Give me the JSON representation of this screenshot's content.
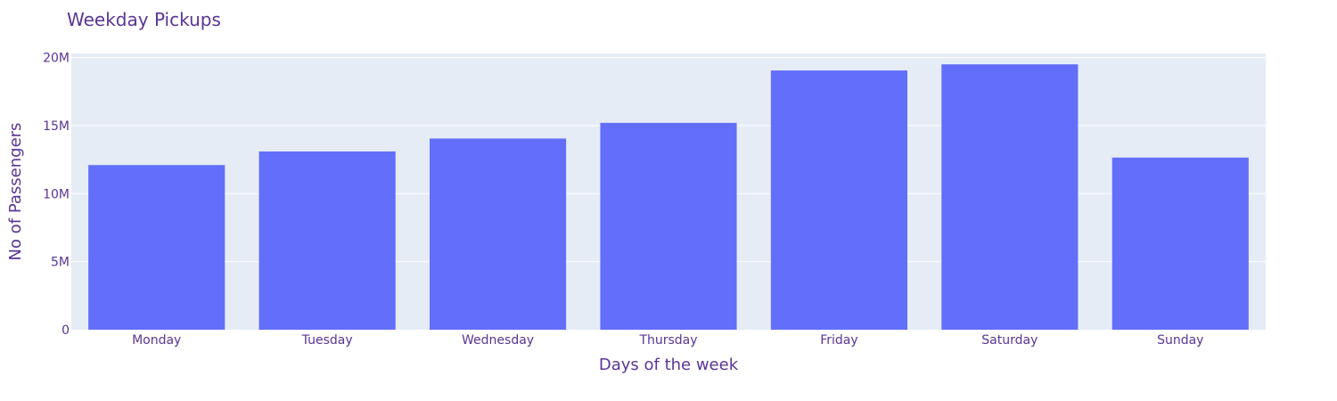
{
  "chart_data": {
    "type": "bar",
    "title": "Weekday Pickups",
    "xlabel": "Days of the week",
    "ylabel": "No of Passengers",
    "categories": [
      "Monday",
      "Tuesday",
      "Wednesday",
      "Thursday",
      "Friday",
      "Saturday",
      "Sunday"
    ],
    "values": [
      12100000,
      13100000,
      14050000,
      15200000,
      19050000,
      19500000,
      12650000
    ],
    "ylim": [
      0,
      20300000
    ],
    "yticks": [
      0,
      5000000,
      10000000,
      15000000,
      20000000
    ],
    "ytick_labels": [
      "0",
      "5M",
      "10M",
      "15M",
      "20M"
    ],
    "grid": true,
    "bar_color": "#636efa",
    "plot_background": "#e5ecf6",
    "text_color": "#5a3595"
  }
}
